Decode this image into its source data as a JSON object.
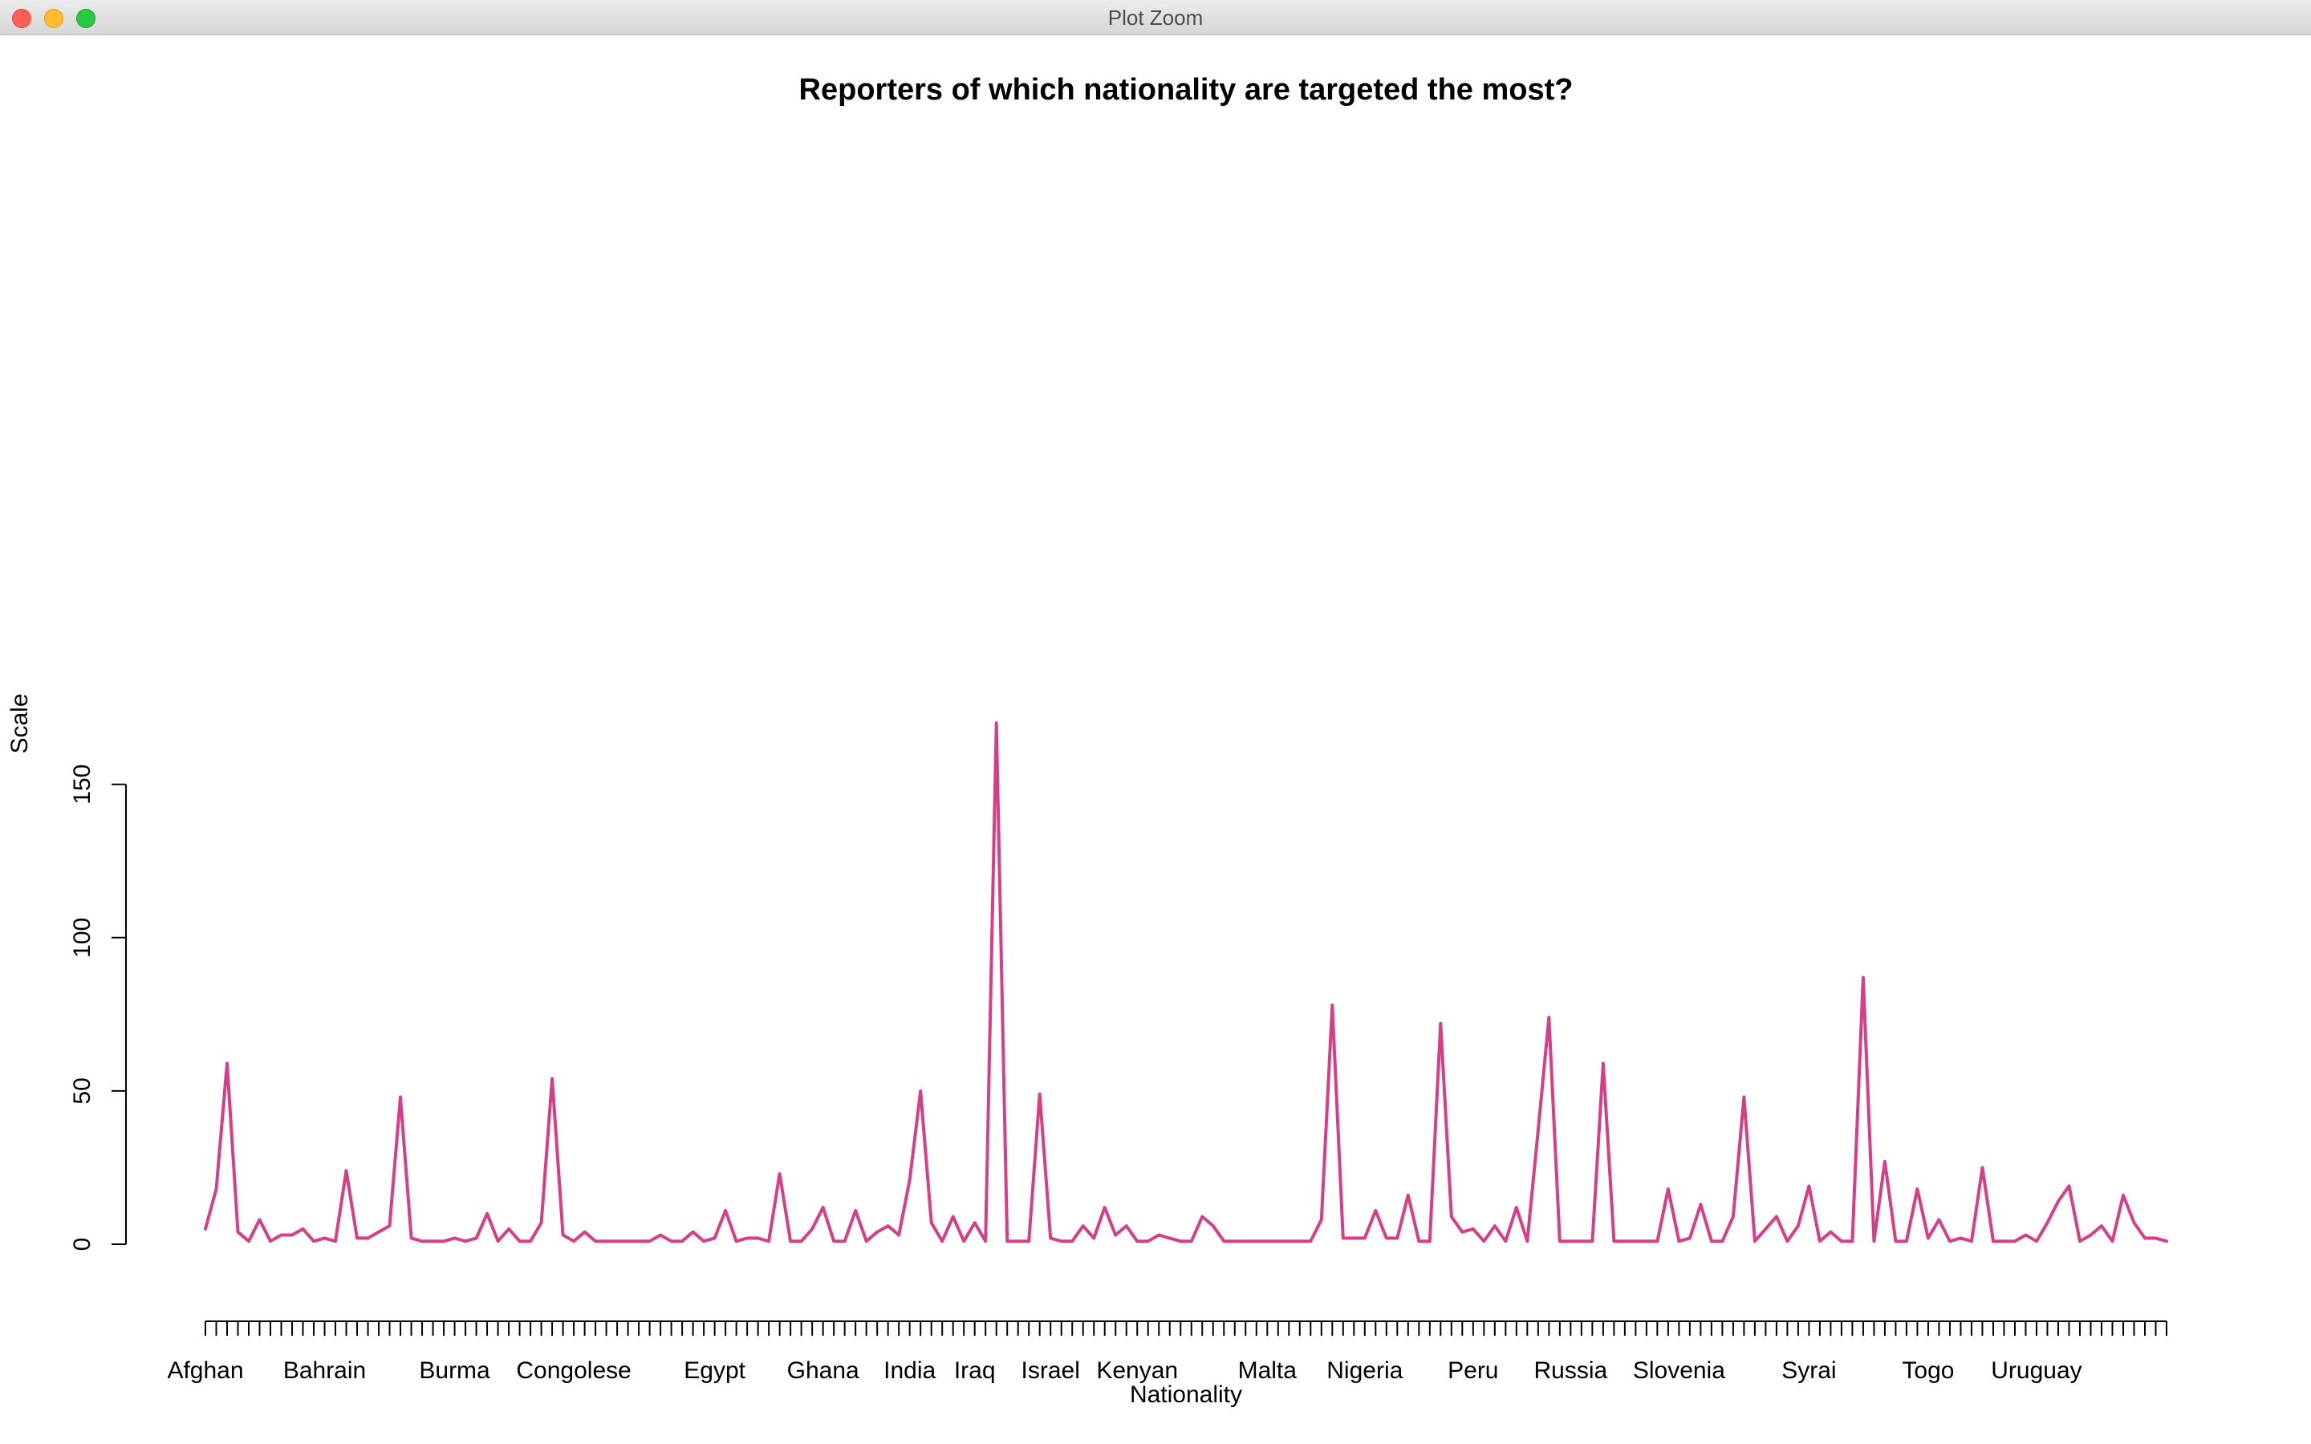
{
  "window": {
    "title": "Plot Zoom",
    "buttons": {
      "close": "close",
      "minimize": "minimize",
      "zoom": "zoom"
    }
  },
  "colors": {
    "series": "#d63f87",
    "axis": "#000000",
    "text": "#000000"
  },
  "chart_data": {
    "type": "line",
    "title": "Reporters of which nationality are targeted the most?",
    "xlabel": "Nationality",
    "ylabel": "Scale",
    "ylim": [
      0,
      170
    ],
    "y_ticks": [
      0,
      50,
      100,
      150
    ],
    "x_tick_labels": [
      {
        "label": "Afghan",
        "index": 1
      },
      {
        "label": "Bahrain",
        "index": 12
      },
      {
        "label": "Burma",
        "index": 24
      },
      {
        "label": "Congolese",
        "index": 35
      },
      {
        "label": "Egypt",
        "index": 48
      },
      {
        "label": "Ghana",
        "index": 58
      },
      {
        "label": "India",
        "index": 66
      },
      {
        "label": "Iraq",
        "index": 72
      },
      {
        "label": "Israel",
        "index": 79
      },
      {
        "label": "Kenyan",
        "index": 87
      },
      {
        "label": "Malta",
        "index": 99
      },
      {
        "label": "Nigeria",
        "index": 108
      },
      {
        "label": "Peru",
        "index": 118
      },
      {
        "label": "Russia",
        "index": 127
      },
      {
        "label": "Slovenia",
        "index": 137
      },
      {
        "label": "Syrai",
        "index": 149
      },
      {
        "label": "Togo",
        "index": 160
      },
      {
        "label": "Uruguay",
        "index": 170
      }
    ],
    "grid": false,
    "legend": "none",
    "series": [
      {
        "values": [
          5,
          18,
          59,
          4,
          1,
          8,
          1,
          3,
          3,
          5,
          1,
          2,
          1,
          24,
          2,
          2,
          4,
          6,
          48,
          2,
          1,
          1,
          1,
          2,
          1,
          2,
          10,
          1,
          5,
          1,
          1,
          7,
          54,
          3,
          1,
          4,
          1,
          1,
          1,
          1,
          1,
          1,
          3,
          1,
          1,
          4,
          1,
          2,
          11,
          1,
          2,
          2,
          1,
          23,
          1,
          1,
          5,
          12,
          1,
          1,
          11,
          1,
          4,
          6,
          3,
          21,
          50,
          7,
          1,
          9,
          1,
          7,
          1,
          170,
          1,
          1,
          1,
          49,
          2,
          1,
          1,
          6,
          2,
          12,
          3,
          6,
          1,
          1,
          3,
          2,
          1,
          1,
          9,
          6,
          1,
          1,
          1,
          1,
          1,
          1,
          1,
          1,
          1,
          8,
          78,
          2,
          2,
          2,
          11,
          2,
          2,
          16,
          1,
          1,
          72,
          9,
          4,
          5,
          1,
          6,
          1,
          12,
          1,
          37,
          74,
          1,
          1,
          1,
          1,
          59,
          1,
          1,
          1,
          1,
          1,
          18,
          1,
          2,
          13,
          1,
          1,
          9,
          48,
          1,
          5,
          9,
          1,
          6,
          19,
          1,
          4,
          1,
          1,
          87,
          1,
          27,
          1,
          1,
          18,
          2,
          8,
          1,
          2,
          1,
          25,
          1,
          1,
          1,
          3,
          1,
          7,
          14,
          19,
          1,
          3,
          6,
          1,
          16,
          7,
          2,
          2,
          1
        ]
      }
    ]
  }
}
